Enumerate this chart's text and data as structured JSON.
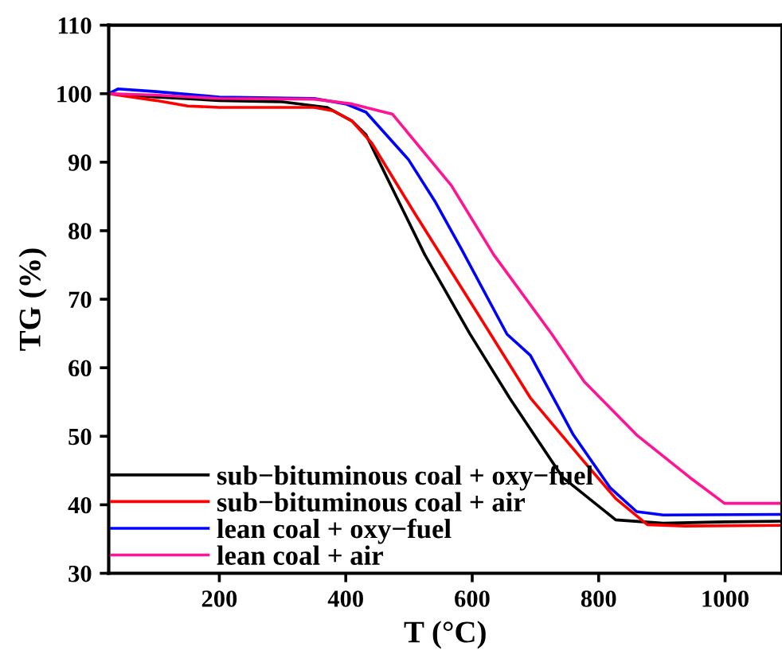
{
  "chart_data": {
    "type": "line",
    "xlabel": "T (°C)",
    "ylabel": "TG (%)",
    "xlim": [
      25,
      1090
    ],
    "ylim": [
      30,
      110
    ],
    "xticks": [
      200,
      400,
      600,
      800,
      1000
    ],
    "yticks": [
      30,
      40,
      50,
      60,
      70,
      80,
      90,
      100,
      110
    ],
    "grid": false,
    "legend": "bottom left",
    "marker": "none",
    "line_style": "solid",
    "series": [
      {
        "name": "sub−bituminous coal + oxy−fuel",
        "color": "#000000",
        "x": [
          25,
          100,
          200,
          300,
          370,
          410,
          432,
          525,
          596,
          659,
          743,
          827,
          902,
          1000,
          1090
        ],
        "values": [
          100,
          99.5,
          99,
          98.8,
          98,
          96,
          94,
          76.5,
          65,
          55.6,
          44,
          37.8,
          37.3,
          37.5,
          37.6
        ]
      },
      {
        "name": "sub−bituminous coal + air",
        "color": "#ff0000",
        "x": [
          25,
          100,
          150,
          200,
          350,
          380,
          410,
          441,
          508,
          608,
          692,
          776,
          827,
          877,
          936,
          1090
        ],
        "values": [
          100,
          99,
          98.2,
          98,
          98,
          97.5,
          96,
          92.8,
          82.7,
          68,
          55.6,
          46.4,
          40.9,
          37.1,
          36.9,
          37
        ]
      },
      {
        "name": "lean coal + oxy−fuel",
        "color": "#0000ff",
        "x": [
          25,
          40,
          100,
          200,
          350,
          400,
          432,
          499,
          541,
          583,
          655,
          692,
          760,
          818,
          860,
          902,
          1090
        ],
        "values": [
          100,
          100.7,
          100.3,
          99.5,
          99.3,
          98.5,
          97.3,
          90.4,
          84.3,
          77.3,
          64.9,
          61.8,
          50.2,
          42.5,
          39,
          38.5,
          38.6
        ]
      },
      {
        "name": "lean coal + air",
        "color": "#ff1493",
        "x": [
          25,
          100,
          200,
          350,
          410,
          474,
          567,
          634,
          726,
          777,
          860,
          944,
          999,
          1090
        ],
        "values": [
          100,
          99.8,
          99.3,
          99.2,
          98.5,
          97,
          86.6,
          76.5,
          64.9,
          58,
          50.2,
          44,
          40.2,
          40.2
        ]
      }
    ]
  }
}
